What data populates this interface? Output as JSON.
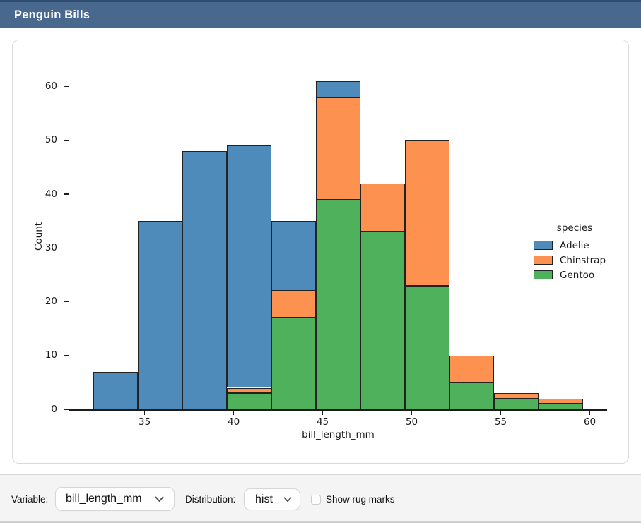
{
  "window": {
    "title": "Penguin Bills"
  },
  "colors": {
    "titlebar_bg": "#48698d",
    "titlebar_edge": "#2e4e6f",
    "adelie_blue": "#4f8bba",
    "chinstrap_orange": "#fc9150",
    "gentoo_green": "#50b15c",
    "bar_edge": "#222222",
    "controls_bg": "#f4f4f5"
  },
  "chart_data": {
    "type": "bar",
    "subtype": "stacked_histogram",
    "title": "",
    "xlabel": "bill_length_mm",
    "ylabel": "Count",
    "bin_edges": [
      32.1,
      34.6,
      37.1,
      39.6,
      42.1,
      44.6,
      47.1,
      49.6,
      52.1,
      54.6,
      57.1,
      59.6
    ],
    "series": [
      {
        "name": "Adelie",
        "color": "#4f8bba",
        "values": [
          7,
          35,
          48,
          45,
          13,
          3,
          0,
          0,
          0,
          0,
          0
        ]
      },
      {
        "name": "Chinstrap",
        "color": "#fc9150",
        "values": [
          0,
          0,
          0,
          1,
          5,
          19,
          9,
          27,
          5,
          1,
          1
        ]
      },
      {
        "name": "Gentoo",
        "color": "#50b15c",
        "values": [
          0,
          0,
          0,
          3,
          17,
          39,
          33,
          23,
          5,
          2,
          1
        ]
      }
    ],
    "stack_bottom_to_top": [
      "Gentoo",
      "Chinstrap",
      "Adelie"
    ],
    "stacked_totals": [
      7,
      35,
      48,
      49,
      35,
      61,
      42,
      50,
      10,
      3,
      2
    ],
    "xticks": [
      35,
      40,
      45,
      50,
      55,
      60
    ],
    "yticks": [
      0,
      10,
      20,
      30,
      40,
      50,
      60
    ],
    "xlim": [
      30.77,
      60.97
    ],
    "ylim": [
      0,
      64.4
    ],
    "grid": false,
    "legend": {
      "title": "species",
      "entries": [
        "Adelie",
        "Chinstrap",
        "Gentoo"
      ],
      "position": "center-right",
      "frame": false
    }
  },
  "controls": {
    "variable_label": "Variable:",
    "variable_value": "bill_length_mm",
    "distribution_label": "Distribution:",
    "distribution_value": "hist",
    "rug_label": "Show rug marks",
    "rug_checked": false
  }
}
